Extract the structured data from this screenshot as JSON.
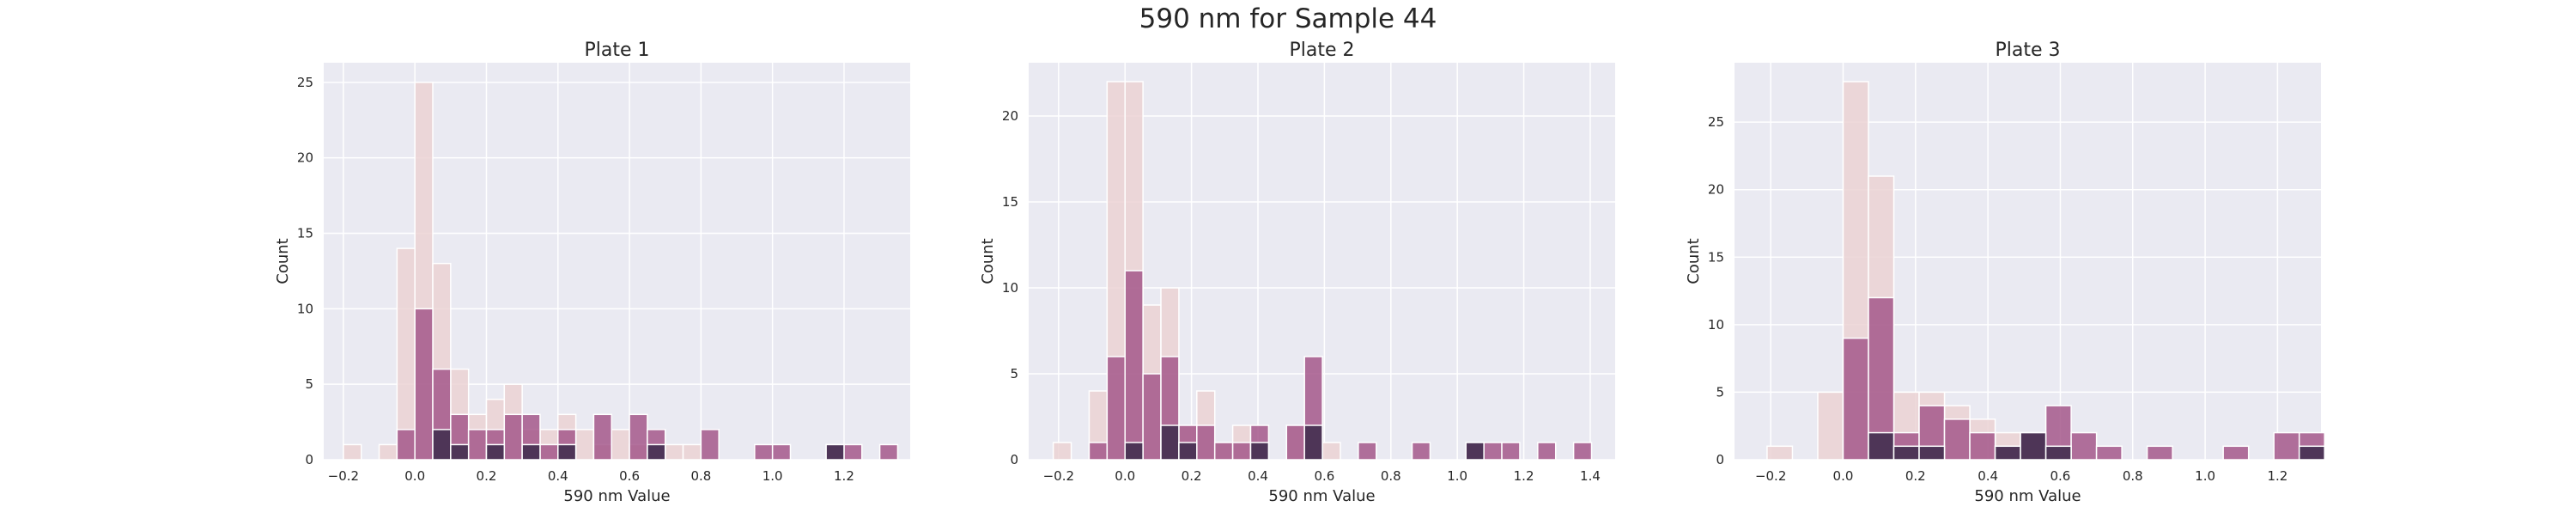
{
  "figure": {
    "title": "590 nm for Sample 44"
  },
  "colors": {
    "background": "#EAEAF2",
    "grid": "#FFFFFF",
    "hue_light": "#EBD2D4",
    "hue_mid": "#A5588B",
    "hue_dark": "#3D2B4C",
    "bar_edge": "#FFFFFF"
  },
  "chart_data": [
    {
      "type": "bar",
      "title": "Plate 1",
      "xlabel": "590 nm Value",
      "ylabel": "Count",
      "xlim": [
        -0.255,
        1.385
      ],
      "ylim": [
        0,
        26.3
      ],
      "xticks": [
        -0.2,
        0.0,
        0.2,
        0.4,
        0.6,
        0.8,
        1.0,
        1.2
      ],
      "xtick_labels": [
        "−0.2",
        "0.0",
        "0.2",
        "0.4",
        "0.6",
        "0.8",
        "1.0",
        "1.2"
      ],
      "yticks": [
        0,
        5,
        10,
        15,
        20,
        25
      ],
      "ytick_labels": [
        "0",
        "5",
        "10",
        "15",
        "20",
        "25"
      ],
      "grid": true,
      "legend": "none",
      "bin_width": 0.05,
      "series": [
        {
          "level": "light",
          "bins": [
            [
              -0.175,
              1
            ],
            [
              -0.075,
              1
            ],
            [
              -0.025,
              14
            ],
            [
              0.025,
              25
            ],
            [
              0.075,
              13
            ],
            [
              0.125,
              6
            ],
            [
              0.175,
              3
            ],
            [
              0.225,
              4
            ],
            [
              0.275,
              5
            ],
            [
              0.325,
              2
            ],
            [
              0.375,
              2
            ],
            [
              0.425,
              3
            ],
            [
              0.475,
              2
            ],
            [
              0.525,
              1
            ],
            [
              0.575,
              2
            ],
            [
              0.625,
              1
            ],
            [
              0.725,
              1
            ],
            [
              0.775,
              1
            ]
          ]
        },
        {
          "level": "mid",
          "bins": [
            [
              -0.025,
              2
            ],
            [
              0.025,
              10
            ],
            [
              0.075,
              6
            ],
            [
              0.125,
              3
            ],
            [
              0.175,
              2
            ],
            [
              0.225,
              2
            ],
            [
              0.275,
              3
            ],
            [
              0.325,
              3
            ],
            [
              0.375,
              1
            ],
            [
              0.425,
              2
            ],
            [
              0.525,
              3
            ],
            [
              0.625,
              3
            ],
            [
              0.675,
              2
            ],
            [
              0.825,
              2
            ],
            [
              0.975,
              1
            ],
            [
              1.025,
              1
            ],
            [
              1.175,
              1
            ],
            [
              1.225,
              1
            ],
            [
              1.325,
              1
            ]
          ]
        },
        {
          "level": "dark",
          "bins": [
            [
              0.075,
              2
            ],
            [
              0.125,
              1
            ],
            [
              0.225,
              1
            ],
            [
              0.325,
              1
            ],
            [
              0.425,
              1
            ],
            [
              0.675,
              1
            ],
            [
              1.175,
              1
            ]
          ]
        }
      ]
    },
    {
      "type": "bar",
      "title": "Plate 2",
      "xlabel": "590 nm Value",
      "ylabel": "Count",
      "xlim": [
        -0.29,
        1.475
      ],
      "ylim": [
        0,
        23.1
      ],
      "xticks": [
        -0.2,
        0.0,
        0.2,
        0.4,
        0.6,
        0.8,
        1.0,
        1.2,
        1.4
      ],
      "xtick_labels": [
        "−0.2",
        "0.0",
        "0.2",
        "0.4",
        "0.6",
        "0.8",
        "1.0",
        "1.2",
        "1.4"
      ],
      "yticks": [
        0,
        5,
        10,
        15,
        20
      ],
      "ytick_labels": [
        "0",
        "5",
        "10",
        "15",
        "20"
      ],
      "grid": true,
      "legend": "none",
      "bin_width": 0.054,
      "series": [
        {
          "level": "light",
          "bins": [
            [
              -0.189,
              1
            ],
            [
              -0.081,
              4
            ],
            [
              -0.027,
              22
            ],
            [
              0.027,
              22
            ],
            [
              0.081,
              9
            ],
            [
              0.135,
              10
            ],
            [
              0.189,
              2
            ],
            [
              0.243,
              4
            ],
            [
              0.297,
              1
            ],
            [
              0.351,
              2
            ],
            [
              0.405,
              1
            ],
            [
              0.513,
              2
            ],
            [
              0.567,
              2
            ],
            [
              0.621,
              1
            ]
          ]
        },
        {
          "level": "mid",
          "bins": [
            [
              -0.081,
              1
            ],
            [
              -0.027,
              6
            ],
            [
              0.027,
              11
            ],
            [
              0.081,
              5
            ],
            [
              0.135,
              6
            ],
            [
              0.189,
              2
            ],
            [
              0.243,
              2
            ],
            [
              0.297,
              1
            ],
            [
              0.351,
              1
            ],
            [
              0.405,
              2
            ],
            [
              0.513,
              2
            ],
            [
              0.567,
              6
            ],
            [
              0.729,
              1
            ],
            [
              0.891,
              1
            ],
            [
              1.053,
              1
            ],
            [
              1.107,
              1
            ],
            [
              1.161,
              1
            ],
            [
              1.269,
              1
            ],
            [
              1.377,
              1
            ]
          ]
        },
        {
          "level": "dark",
          "bins": [
            [
              0.027,
              1
            ],
            [
              0.135,
              2
            ],
            [
              0.189,
              1
            ],
            [
              0.405,
              1
            ],
            [
              0.567,
              2
            ],
            [
              1.053,
              1
            ]
          ]
        }
      ]
    },
    {
      "type": "bar",
      "title": "Plate 3",
      "xlabel": "590 nm Value",
      "ylabel": "Count",
      "xlim": [
        -0.3,
        1.32
      ],
      "ylim": [
        0,
        29.4
      ],
      "xticks": [
        -0.2,
        0.0,
        0.2,
        0.4,
        0.6,
        0.8,
        1.0,
        1.2
      ],
      "xtick_labels": [
        "−0.2",
        "0.0",
        "0.2",
        "0.4",
        "0.6",
        "0.8",
        "1.0",
        "1.2"
      ],
      "yticks": [
        0,
        5,
        10,
        15,
        20,
        25
      ],
      "ytick_labels": [
        "0",
        "5",
        "10",
        "15",
        "20",
        "25"
      ],
      "grid": true,
      "legend": "none",
      "bin_width": 0.07,
      "series": [
        {
          "level": "light",
          "bins": [
            [
              -0.175,
              1
            ],
            [
              -0.035,
              5
            ],
            [
              0.035,
              28
            ],
            [
              0.105,
              21
            ],
            [
              0.175,
              5
            ],
            [
              0.245,
              5
            ],
            [
              0.315,
              4
            ],
            [
              0.385,
              3
            ],
            [
              0.455,
              2
            ],
            [
              0.525,
              2
            ],
            [
              0.595,
              1
            ]
          ]
        },
        {
          "level": "mid",
          "bins": [
            [
              0.035,
              9
            ],
            [
              0.105,
              12
            ],
            [
              0.175,
              2
            ],
            [
              0.245,
              4
            ],
            [
              0.315,
              3
            ],
            [
              0.385,
              2
            ],
            [
              0.455,
              1
            ],
            [
              0.525,
              2
            ],
            [
              0.595,
              4
            ],
            [
              0.665,
              2
            ],
            [
              0.735,
              1
            ],
            [
              0.875,
              1
            ],
            [
              1.085,
              1
            ],
            [
              1.225,
              2
            ],
            [
              1.295,
              2
            ]
          ]
        },
        {
          "level": "dark",
          "bins": [
            [
              0.105,
              2
            ],
            [
              0.175,
              1
            ],
            [
              0.245,
              1
            ],
            [
              0.455,
              1
            ],
            [
              0.525,
              2
            ],
            [
              0.595,
              1
            ],
            [
              1.295,
              1
            ]
          ]
        }
      ]
    }
  ]
}
